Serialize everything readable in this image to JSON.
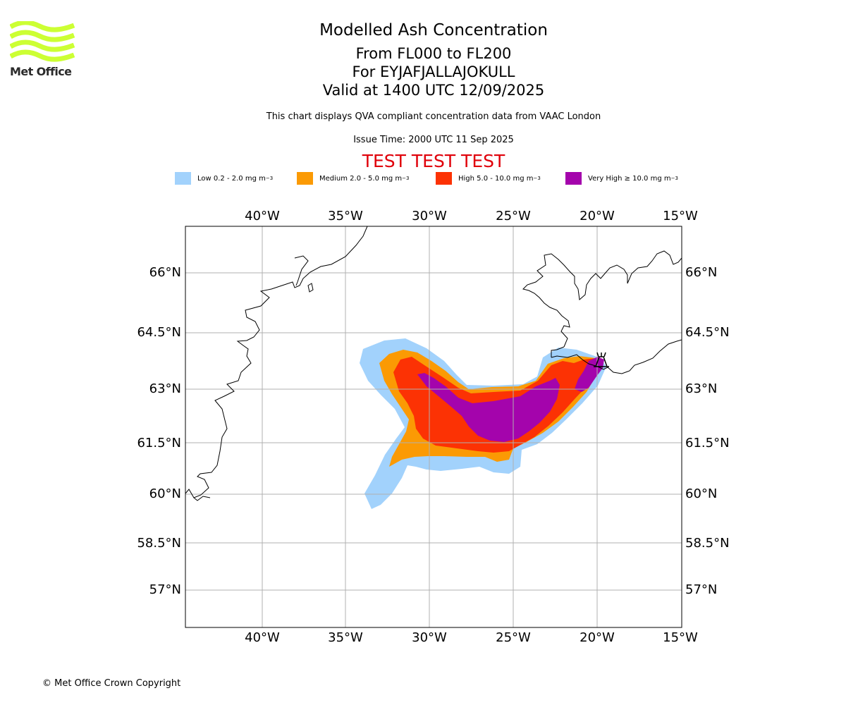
{
  "header": {
    "logo_text": "Met Office",
    "title": "Modelled Ash Concentration",
    "levels": "From FL000 to FL200",
    "volcano": "For EYJAFJALLAJOKULL",
    "valid": "Valid at 1400 UTC 12/09/2025",
    "subtitle": "This chart displays QVA compliant concentration data from VAAC London",
    "issue": "Issue Time: 2000 UTC 11 Sep 2025",
    "test_banner": "TEST TEST TEST"
  },
  "legend": [
    {
      "label": "Low 0.2 - 2.0 mg m",
      "sup": "−3",
      "color": "#a2d2fc"
    },
    {
      "label": "Medium 2.0 - 5.0 mg m",
      "sup": "−3",
      "color": "#fb9a04"
    },
    {
      "label": "High 5.0 - 10.0 mg m",
      "sup": "−3",
      "color": "#fc3204"
    },
    {
      "label": "Very High  ≥  10.0 mg m",
      "sup": "−3",
      "color": "#a404ac"
    }
  ],
  "map": {
    "lon_labels": [
      "40°W",
      "35°W",
      "30°W",
      "25°W",
      "20°W",
      "15°W"
    ],
    "lat_labels": [
      "66°N",
      "64.5°N",
      "63°N",
      "61.5°N",
      "60°N",
      "58.5°N",
      "57°N"
    ],
    "volcano_marker": "volcano-icon"
  },
  "footer": {
    "copyright": "© Met Office Crown Copyright"
  }
}
